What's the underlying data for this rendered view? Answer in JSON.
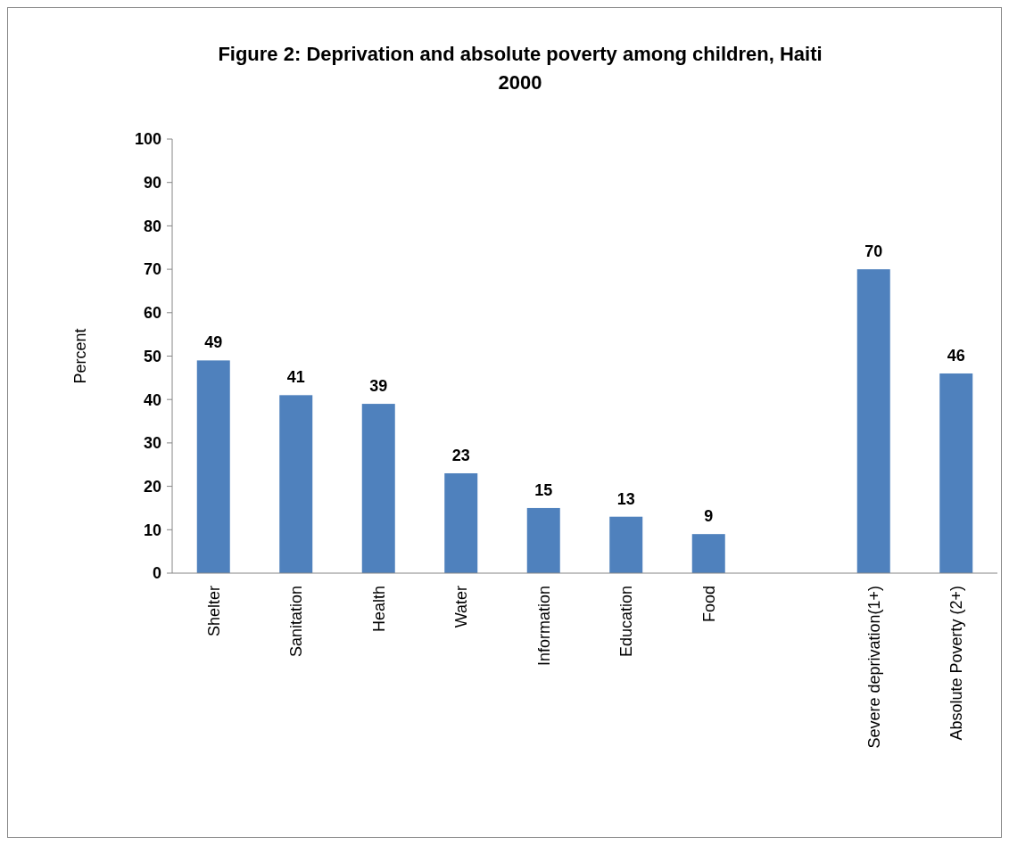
{
  "chart_data": {
    "type": "bar",
    "title": "Figure 2: Deprivation and absolute poverty among children, Haiti 2000",
    "ylabel": "Percent",
    "categories": [
      "Shelter",
      "Sanitation",
      "Health",
      "Water",
      "Information",
      "Education",
      "Food",
      null,
      "Severe deprivation(1+)",
      "Absolute Poverty (2+)"
    ],
    "values": [
      49,
      41,
      39,
      23,
      15,
      13,
      9,
      null,
      70,
      46
    ],
    "color": "#4f81bd",
    "ylim": [
      0,
      100
    ],
    "yticks": [
      0,
      10,
      20,
      30,
      40,
      50,
      60,
      70,
      80,
      90,
      100
    ],
    "data_labels": true,
    "grid": false
  }
}
